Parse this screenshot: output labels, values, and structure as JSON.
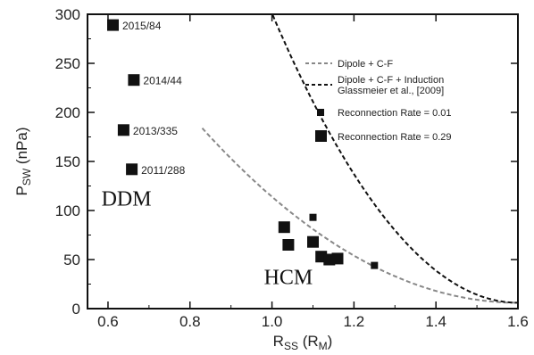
{
  "chart_data": {
    "type": "scatter",
    "title": "",
    "xlabel": {
      "main": "R",
      "sub": "SS",
      "unit_open": " (R",
      "unit_sub": "M",
      "unit_close": ")"
    },
    "ylabel": {
      "main": "P",
      "sub": "SW",
      "unit": " (nPa)"
    },
    "xlim": [
      0.55,
      1.6
    ],
    "ylim": [
      0,
      300
    ],
    "x_ticks": [
      0.6,
      0.8,
      1.0,
      1.2,
      1.4,
      1.6
    ],
    "x_tick_labels": [
      "0.6",
      "0.8",
      "1.0",
      "1.2",
      "1.4",
      "1.6"
    ],
    "y_ticks": [
      0,
      50,
      100,
      150,
      200,
      250,
      300
    ],
    "y_tick_labels": [
      "0",
      "50",
      "100",
      "150",
      "200",
      "250",
      "300"
    ],
    "grid": false,
    "legend_position": "top-right",
    "legend": [
      {
        "label": "Dipole + C-F",
        "style": "dashed-gray"
      },
      {
        "label": "Dipole + C-F + Induction",
        "label2": "Glassmeier et al., [2009]",
        "style": "dashed-black"
      },
      {
        "label": "Reconnection Rate = 0.01",
        "style": "small-square"
      },
      {
        "label": "Reconnection Rate = 0.29",
        "style": "large-square"
      }
    ],
    "region_labels": [
      {
        "text": "DDM",
        "x": 0.645,
        "y": 105
      },
      {
        "text": "HCM",
        "x": 1.04,
        "y": 25
      }
    ],
    "curves": [
      {
        "name": "Dipole + C-F",
        "color": "#888888",
        "k": 108,
        "x0": 0.83,
        "x1": 1.6
      },
      {
        "name": "Dipole + C-F + Induction",
        "color": "#111111",
        "k": 295,
        "x0": 0.995,
        "x1": 1.6
      }
    ],
    "series": [
      {
        "name": "Reconnection Rate = 0.01",
        "marker": "small",
        "points": [
          {
            "x": 1.1,
            "y": 93
          },
          {
            "x": 1.25,
            "y": 44
          }
        ]
      },
      {
        "name": "Reconnection Rate = 0.29",
        "marker": "large",
        "points": [
          {
            "x": 0.612,
            "y": 289,
            "label": "2015/84"
          },
          {
            "x": 0.663,
            "y": 233,
            "label": "2014/44"
          },
          {
            "x": 0.638,
            "y": 182,
            "label": "2013/335"
          },
          {
            "x": 0.658,
            "y": 142,
            "label": "2011/288"
          },
          {
            "x": 1.03,
            "y": 83
          },
          {
            "x": 1.04,
            "y": 65
          },
          {
            "x": 1.1,
            "y": 68
          },
          {
            "x": 1.12,
            "y": 53
          },
          {
            "x": 1.14,
            "y": 50
          },
          {
            "x": 1.16,
            "y": 51
          }
        ]
      }
    ]
  }
}
